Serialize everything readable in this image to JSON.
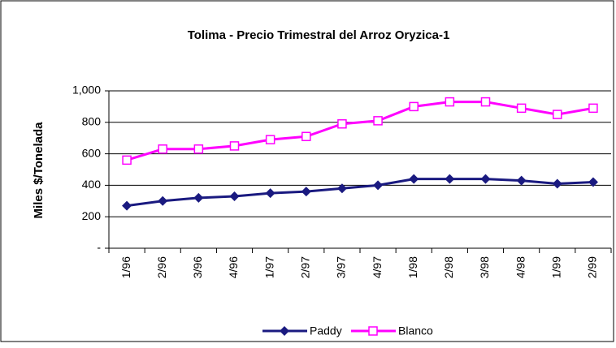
{
  "chart_data": {
    "type": "line",
    "title": "Tolima - Precio Trimestral del Arroz Oryzica-1",
    "y_label": "Miles $/Tonelada",
    "categories": [
      "1/96",
      "2/96",
      "3/96",
      "4/96",
      "1/97",
      "2/97",
      "3/97",
      "4/97",
      "1/98",
      "2/98",
      "3/98",
      "4/98",
      "1/99",
      "2/99"
    ],
    "series": [
      {
        "name": "Paddy",
        "color": "#1a1a80",
        "values": [
          270,
          300,
          320,
          330,
          350,
          360,
          380,
          400,
          440,
          440,
          440,
          430,
          410,
          420
        ]
      },
      {
        "name": "Blanco",
        "color": "#ff00ff",
        "values": [
          560,
          630,
          630,
          650,
          690,
          710,
          790,
          810,
          900,
          930,
          930,
          890,
          850,
          890
        ]
      }
    ],
    "ylim": [
      0,
      1000
    ],
    "yticks": [
      {
        "value": 0,
        "label": "-"
      },
      200,
      400,
      600,
      800,
      {
        "value": 1000,
        "label": "1,000"
      }
    ],
    "grid": true,
    "legend": "bottom"
  }
}
